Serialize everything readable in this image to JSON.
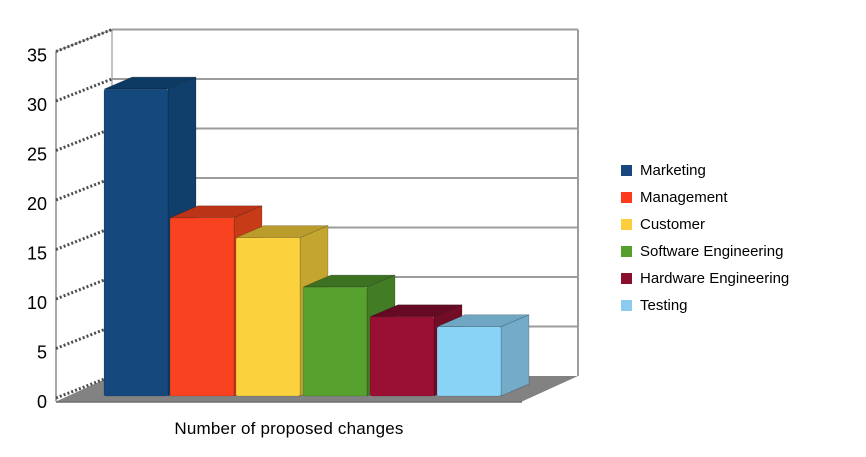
{
  "chart_data": {
    "type": "bar",
    "projection": "3d",
    "title": "",
    "xlabel": "Number of proposed changes",
    "ylabel": "",
    "ylim": [
      0,
      35
    ],
    "ytick_step": 5,
    "yticks": [
      "0",
      "5",
      "10",
      "15",
      "20",
      "25",
      "30",
      "35"
    ],
    "grid": true,
    "legend_position": "right",
    "categories": [
      "Marketing",
      "Management",
      "Customer",
      "Software Engineering",
      "Hardware Engineering",
      "Testing"
    ],
    "values": [
      31,
      18,
      16,
      11,
      8,
      7
    ],
    "series": [
      {
        "name": "Marketing",
        "value": 31,
        "legend_color": "#17477E",
        "front": "#15497D",
        "top": "#0C3A63",
        "side": "#113F6B"
      },
      {
        "name": "Management",
        "value": 18,
        "legend_color": "#FB3B1C",
        "front": "#F94320",
        "top": "#BC3417",
        "side": "#C73C17"
      },
      {
        "name": "Customer",
        "value": 16,
        "legend_color": "#FCCE3D",
        "front": "#FBD23D",
        "top": "#BA9C2C",
        "side": "#C3A52F"
      },
      {
        "name": "Software Engineering",
        "value": 11,
        "legend_color": "#55A02C",
        "front": "#57A12F",
        "top": "#3B7121",
        "side": "#427C25"
      },
      {
        "name": "Hardware Engineering",
        "value": 8,
        "legend_color": "#8C0E2F",
        "front": "#9A1034",
        "top": "#660A23",
        "side": "#730C27"
      },
      {
        "name": "Testing",
        "value": 7,
        "legend_color": "#8BCBF0",
        "front": "#89D3F7",
        "top": "#6FA6C2",
        "side": "#73ABC8"
      }
    ],
    "colors": {
      "gridline": "#9C9C9C",
      "axis": "#8C8C8C",
      "wall_edge": "#999999",
      "tick_ribbon": "#4D4D4D",
      "floor": "#828282",
      "floor_edge": "#6F6F6F",
      "wall": "#FFFFFF",
      "text": "#000000"
    }
  }
}
